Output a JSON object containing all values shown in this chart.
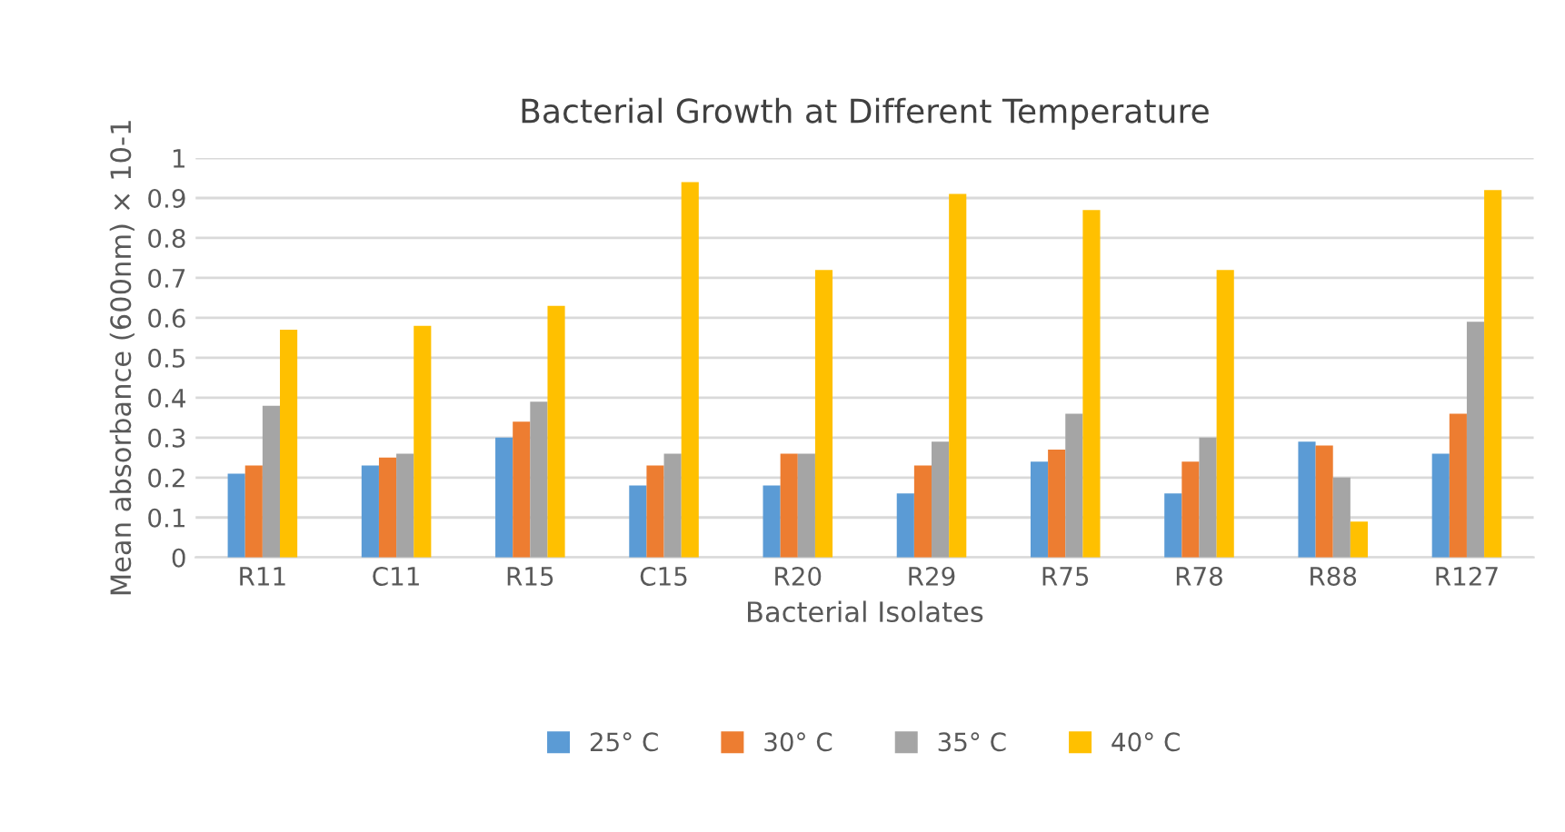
{
  "chart_data": {
    "type": "bar",
    "title": "Bacterial Growth at Different Temperature",
    "xlabel": "Bacterial Isolates",
    "ylabel": "Mean absorbance (600nm) × 10-1",
    "categories": [
      "R11",
      "C11",
      "R15",
      "C15",
      "R20",
      "R29",
      "R75",
      "R78",
      "R88",
      "R127"
    ],
    "series": [
      {
        "name": "25° C",
        "color": "#5b9bd5",
        "values": [
          0.21,
          0.23,
          0.3,
          0.18,
          0.18,
          0.16,
          0.24,
          0.16,
          0.29,
          0.26
        ]
      },
      {
        "name": "30° C",
        "color": "#ed7d31",
        "values": [
          0.23,
          0.25,
          0.34,
          0.23,
          0.26,
          0.23,
          0.27,
          0.24,
          0.28,
          0.36
        ]
      },
      {
        "name": "35° C",
        "color": "#a5a5a5",
        "values": [
          0.38,
          0.26,
          0.39,
          0.26,
          0.26,
          0.29,
          0.36,
          0.3,
          0.2,
          0.59
        ]
      },
      {
        "name": "40° C",
        "color": "#ffc000",
        "values": [
          0.57,
          0.58,
          0.63,
          0.94,
          0.72,
          0.91,
          0.87,
          0.72,
          0.09,
          0.92
        ]
      }
    ],
    "ylim": [
      0,
      1
    ],
    "yticks": [
      0,
      0.1,
      0.2,
      0.3,
      0.4,
      0.5,
      0.6,
      0.7,
      0.8,
      0.9,
      1
    ],
    "grid": "y",
    "legend": "bottom"
  }
}
